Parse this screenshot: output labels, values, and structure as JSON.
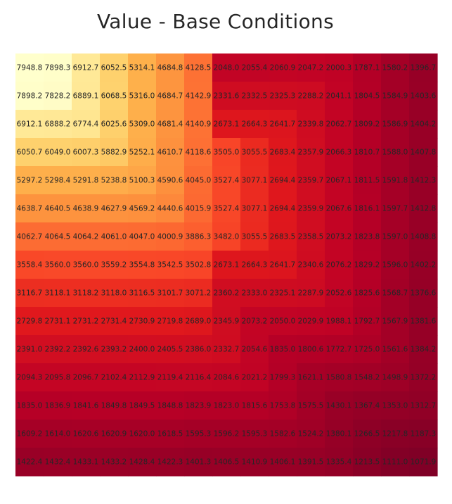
{
  "chart_data": {
    "type": "heatmap",
    "title": "Value - Base Conditions",
    "xlabel": "",
    "ylabel": "",
    "colormap": "YlOrRd",
    "value_range": [
      1071.9,
      7948.8
    ],
    "grid": false,
    "rows": [
      [
        "7948.8",
        "7898.3",
        "6912.7",
        "6052.5",
        "5314.1",
        "4684.8",
        "4128.5",
        "2048.0",
        "2055.4",
        "2060.9",
        "2047.2",
        "2000.3",
        "1787.1",
        "1580.2",
        "1396.7"
      ],
      [
        "7898.2",
        "7828.2",
        "6889.1",
        "6068.5",
        "5316.0",
        "4684.7",
        "4142.9",
        "2331.6",
        "2332.5",
        "2325.3",
        "2288.2",
        "2041.1",
        "1804.5",
        "1584.9",
        "1403.6"
      ],
      [
        "6912.1",
        "6888.2",
        "6774.4",
        "6025.6",
        "5309.0",
        "4681.4",
        "4140.9",
        "2673.1",
        "2664.3",
        "2641.7",
        "2339.8",
        "2062.7",
        "1809.2",
        "1586.9",
        "1404.2"
      ],
      [
        "6050.7",
        "6049.0",
        "6007.3",
        "5882.9",
        "5252.1",
        "4610.7",
        "4118.6",
        "3505.0",
        "3055.5",
        "2683.4",
        "2357.9",
        "2066.3",
        "1810.7",
        "1588.0",
        "1407.8"
      ],
      [
        "5297.2",
        "5298.4",
        "5291.8",
        "5238.8",
        "5100.3",
        "4590.6",
        "4045.0",
        "3527.4",
        "3077.1",
        "2694.4",
        "2359.7",
        "2067.1",
        "1811.5",
        "1591.8",
        "1412.3"
      ],
      [
        "4638.7",
        "4640.5",
        "4638.9",
        "4627.9",
        "4569.2",
        "4440.6",
        "4015.9",
        "3527.4",
        "3077.1",
        "2694.4",
        "2359.9",
        "2067.6",
        "1816.1",
        "1597.7",
        "1412.8"
      ],
      [
        "4062.7",
        "4064.5",
        "4064.2",
        "4061.0",
        "4047.0",
        "4000.9",
        "3886.3",
        "3482.0",
        "3055.5",
        "2683.5",
        "2358.5",
        "2073.2",
        "1823.8",
        "1597.0",
        "1408.8"
      ],
      [
        "3558.4",
        "3560.0",
        "3560.0",
        "3559.2",
        "3554.8",
        "3542.5",
        "3502.8",
        "2673.1",
        "2664.3",
        "2641.7",
        "2340.6",
        "2076.2",
        "1829.2",
        "1596.0",
        "1402.2"
      ],
      [
        "3116.7",
        "3118.1",
        "3118.2",
        "3118.0",
        "3116.5",
        "3101.7",
        "3071.2",
        "2360.2",
        "2333.0",
        "2325.1",
        "2287.9",
        "2052.6",
        "1825.6",
        "1568.7",
        "1376.6"
      ],
      [
        "2729.8",
        "2731.1",
        "2731.2",
        "2731.4",
        "2730.9",
        "2719.8",
        "2689.0",
        "2345.9",
        "2073.2",
        "2050.0",
        "2029.9",
        "1988.1",
        "1792.7",
        "1567.9",
        "1381.6"
      ],
      [
        "2391.0",
        "2392.2",
        "2392.6",
        "2393.2",
        "2400.0",
        "2405.5",
        "2386.0",
        "2332.7",
        "2054.6",
        "1835.0",
        "1800.6",
        "1772.7",
        "1725.0",
        "1561.6",
        "1384.2"
      ],
      [
        "2094.3",
        "2095.8",
        "2096.7",
        "2102.4",
        "2112.9",
        "2119.4",
        "2116.4",
        "2084.6",
        "2021.2",
        "1799.3",
        "1621.1",
        "1580.8",
        "1548.2",
        "1498.9",
        "1372.2"
      ],
      [
        "1835.0",
        "1836.9",
        "1841.6",
        "1849.8",
        "1849.5",
        "1848.8",
        "1823.9",
        "1823.0",
        "1815.6",
        "1753.8",
        "1575.5",
        "1430.1",
        "1367.4",
        "1353.0",
        "1312.7"
      ],
      [
        "1609.2",
        "1614.0",
        "1620.6",
        "1620.9",
        "1620.0",
        "1618.5",
        "1595.3",
        "1596.2",
        "1595.3",
        "1582.6",
        "1524.2",
        "1380.1",
        "1266.5",
        "1217.8",
        "1187.3"
      ],
      [
        "1422.4",
        "1432.4",
        "1433.1",
        "1433.2",
        "1428.4",
        "1422.3",
        "1401.3",
        "1406.5",
        "1410.9",
        "1406.1",
        "1391.5",
        "1335.4",
        "1213.5",
        "1111.0",
        "1071.9"
      ]
    ]
  }
}
